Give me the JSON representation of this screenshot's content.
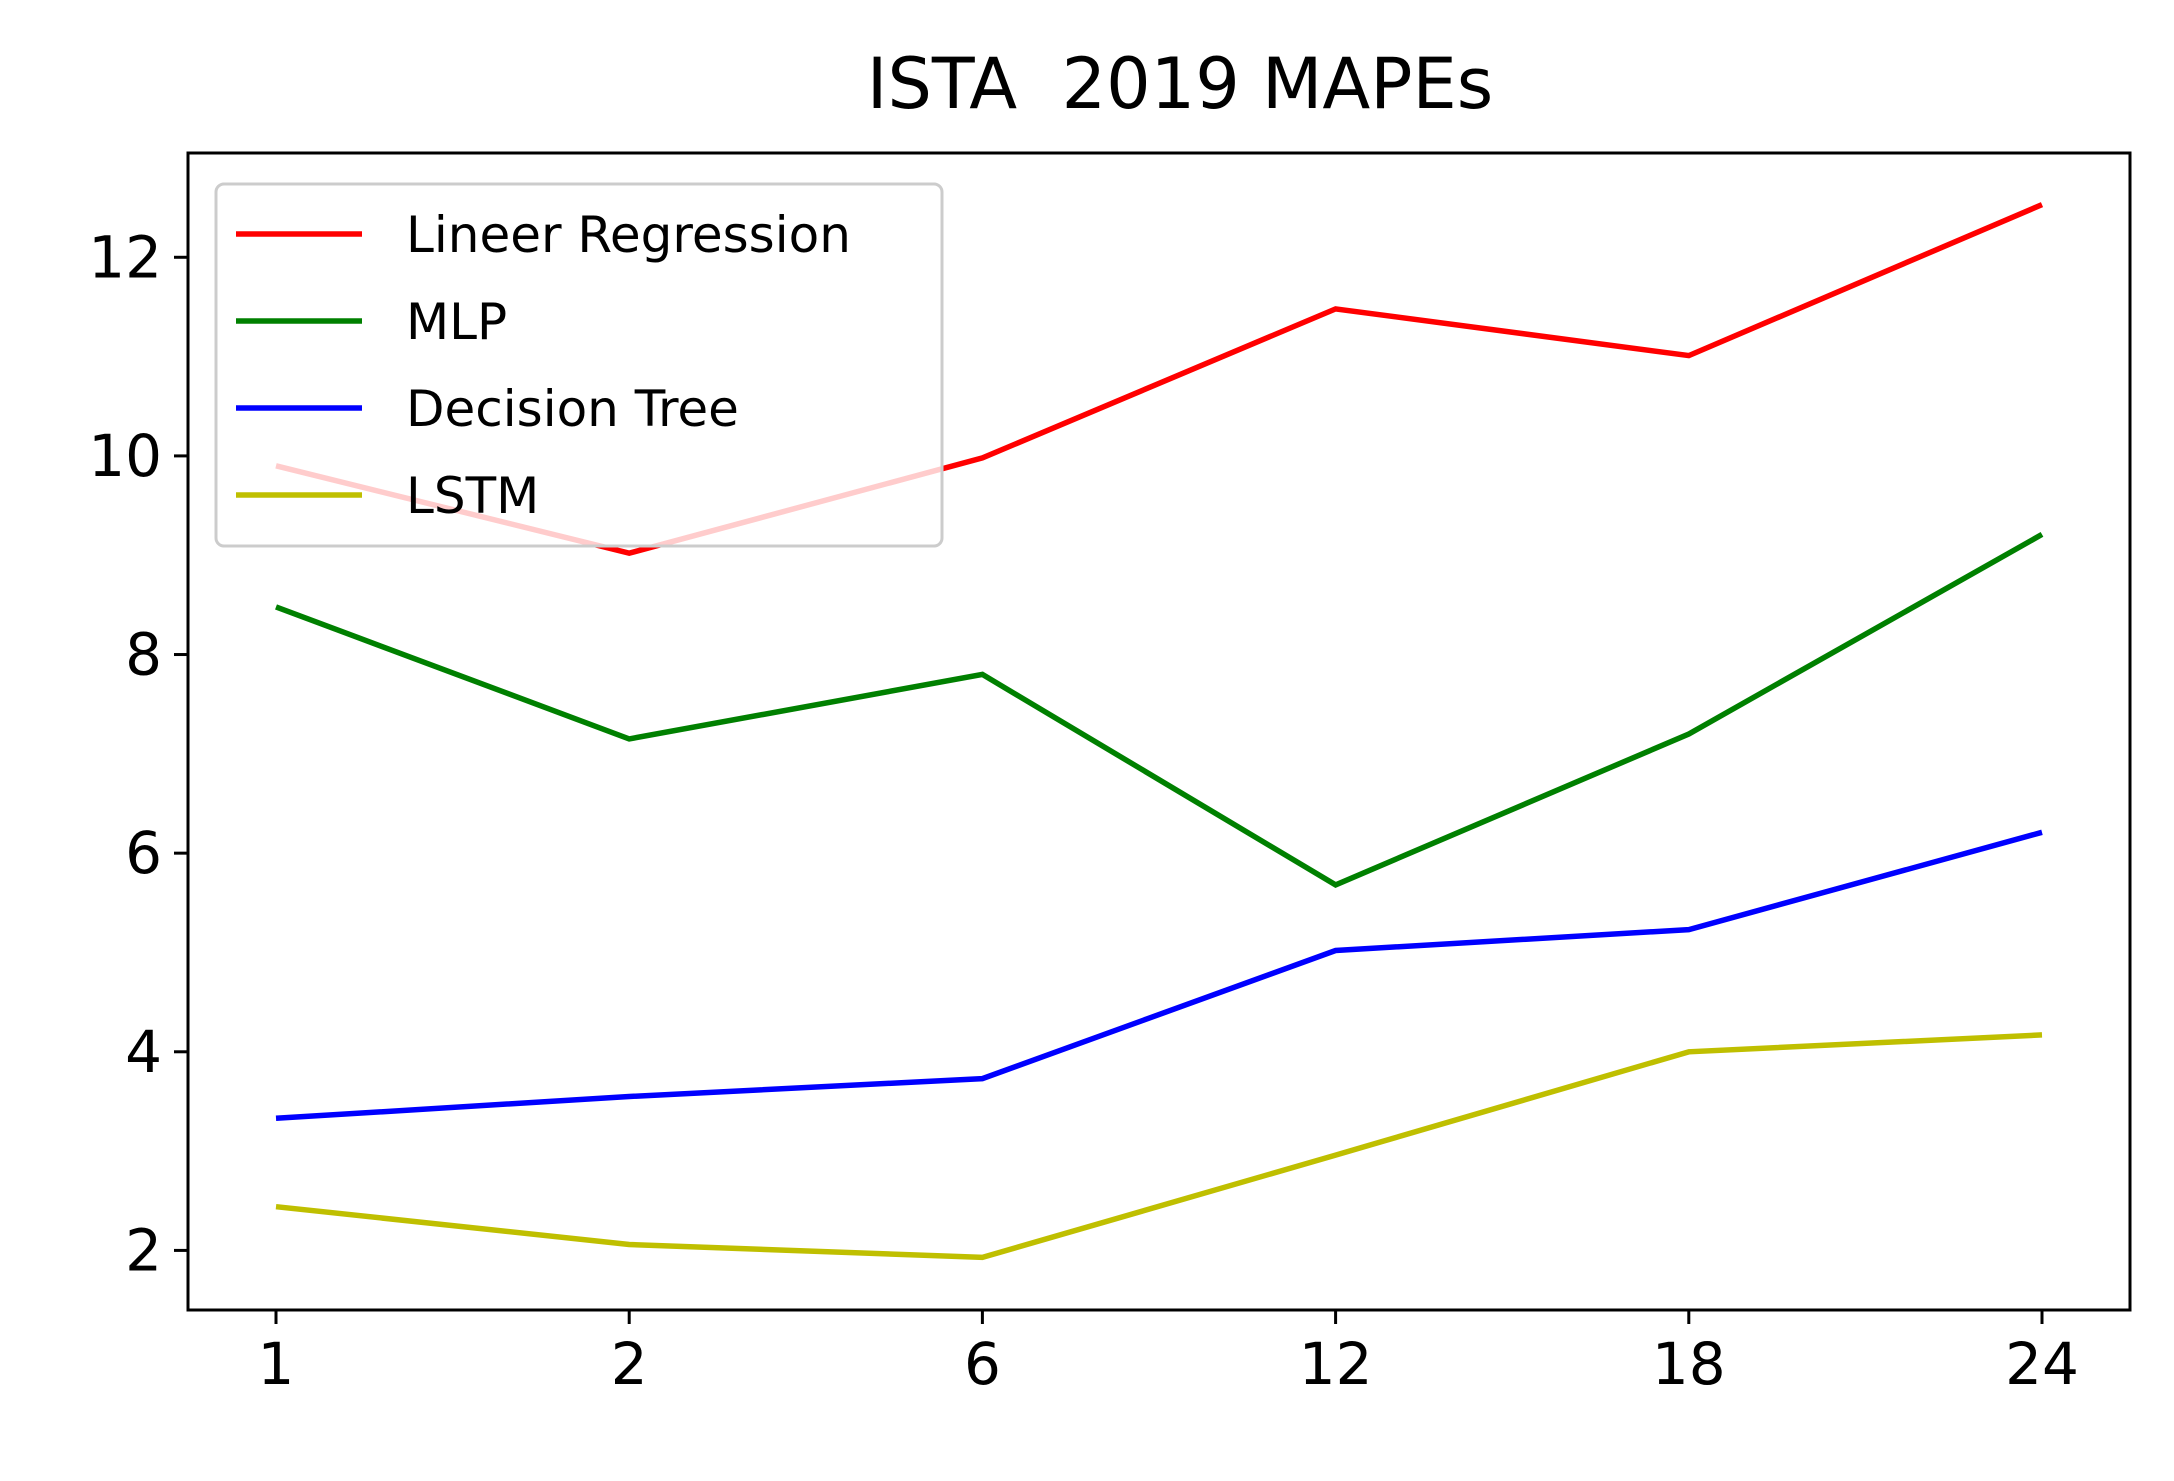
{
  "chart_data": {
    "type": "line",
    "title": "ISTA  2019 MAPEs",
    "xlabel": "",
    "ylabel": "",
    "categories": [
      "1",
      "2",
      "6",
      "12",
      "18",
      "24"
    ],
    "yticks": [
      2,
      4,
      6,
      8,
      10,
      12
    ],
    "ytick_labels": [
      "2",
      "4",
      "6",
      "8",
      "10",
      "12"
    ],
    "ylim": [
      1.4,
      13.05
    ],
    "grid": false,
    "legend_position": "top-left",
    "series": [
      {
        "name": "Lineer Regression",
        "color": "#ff0000",
        "values": [
          9.9,
          9.02,
          9.98,
          11.48,
          11.01,
          12.53
        ]
      },
      {
        "name": "MLP",
        "color": "#008000",
        "values": [
          8.48,
          7.15,
          7.8,
          5.68,
          7.2,
          9.21
        ]
      },
      {
        "name": "Decision Tree",
        "color": "#0000ff",
        "values": [
          3.33,
          3.55,
          3.73,
          5.02,
          5.23,
          6.21
        ]
      },
      {
        "name": "LSTM",
        "color": "#bfbf00",
        "values": [
          2.44,
          2.06,
          1.93,
          2.96,
          4.0,
          4.17
        ]
      }
    ]
  }
}
